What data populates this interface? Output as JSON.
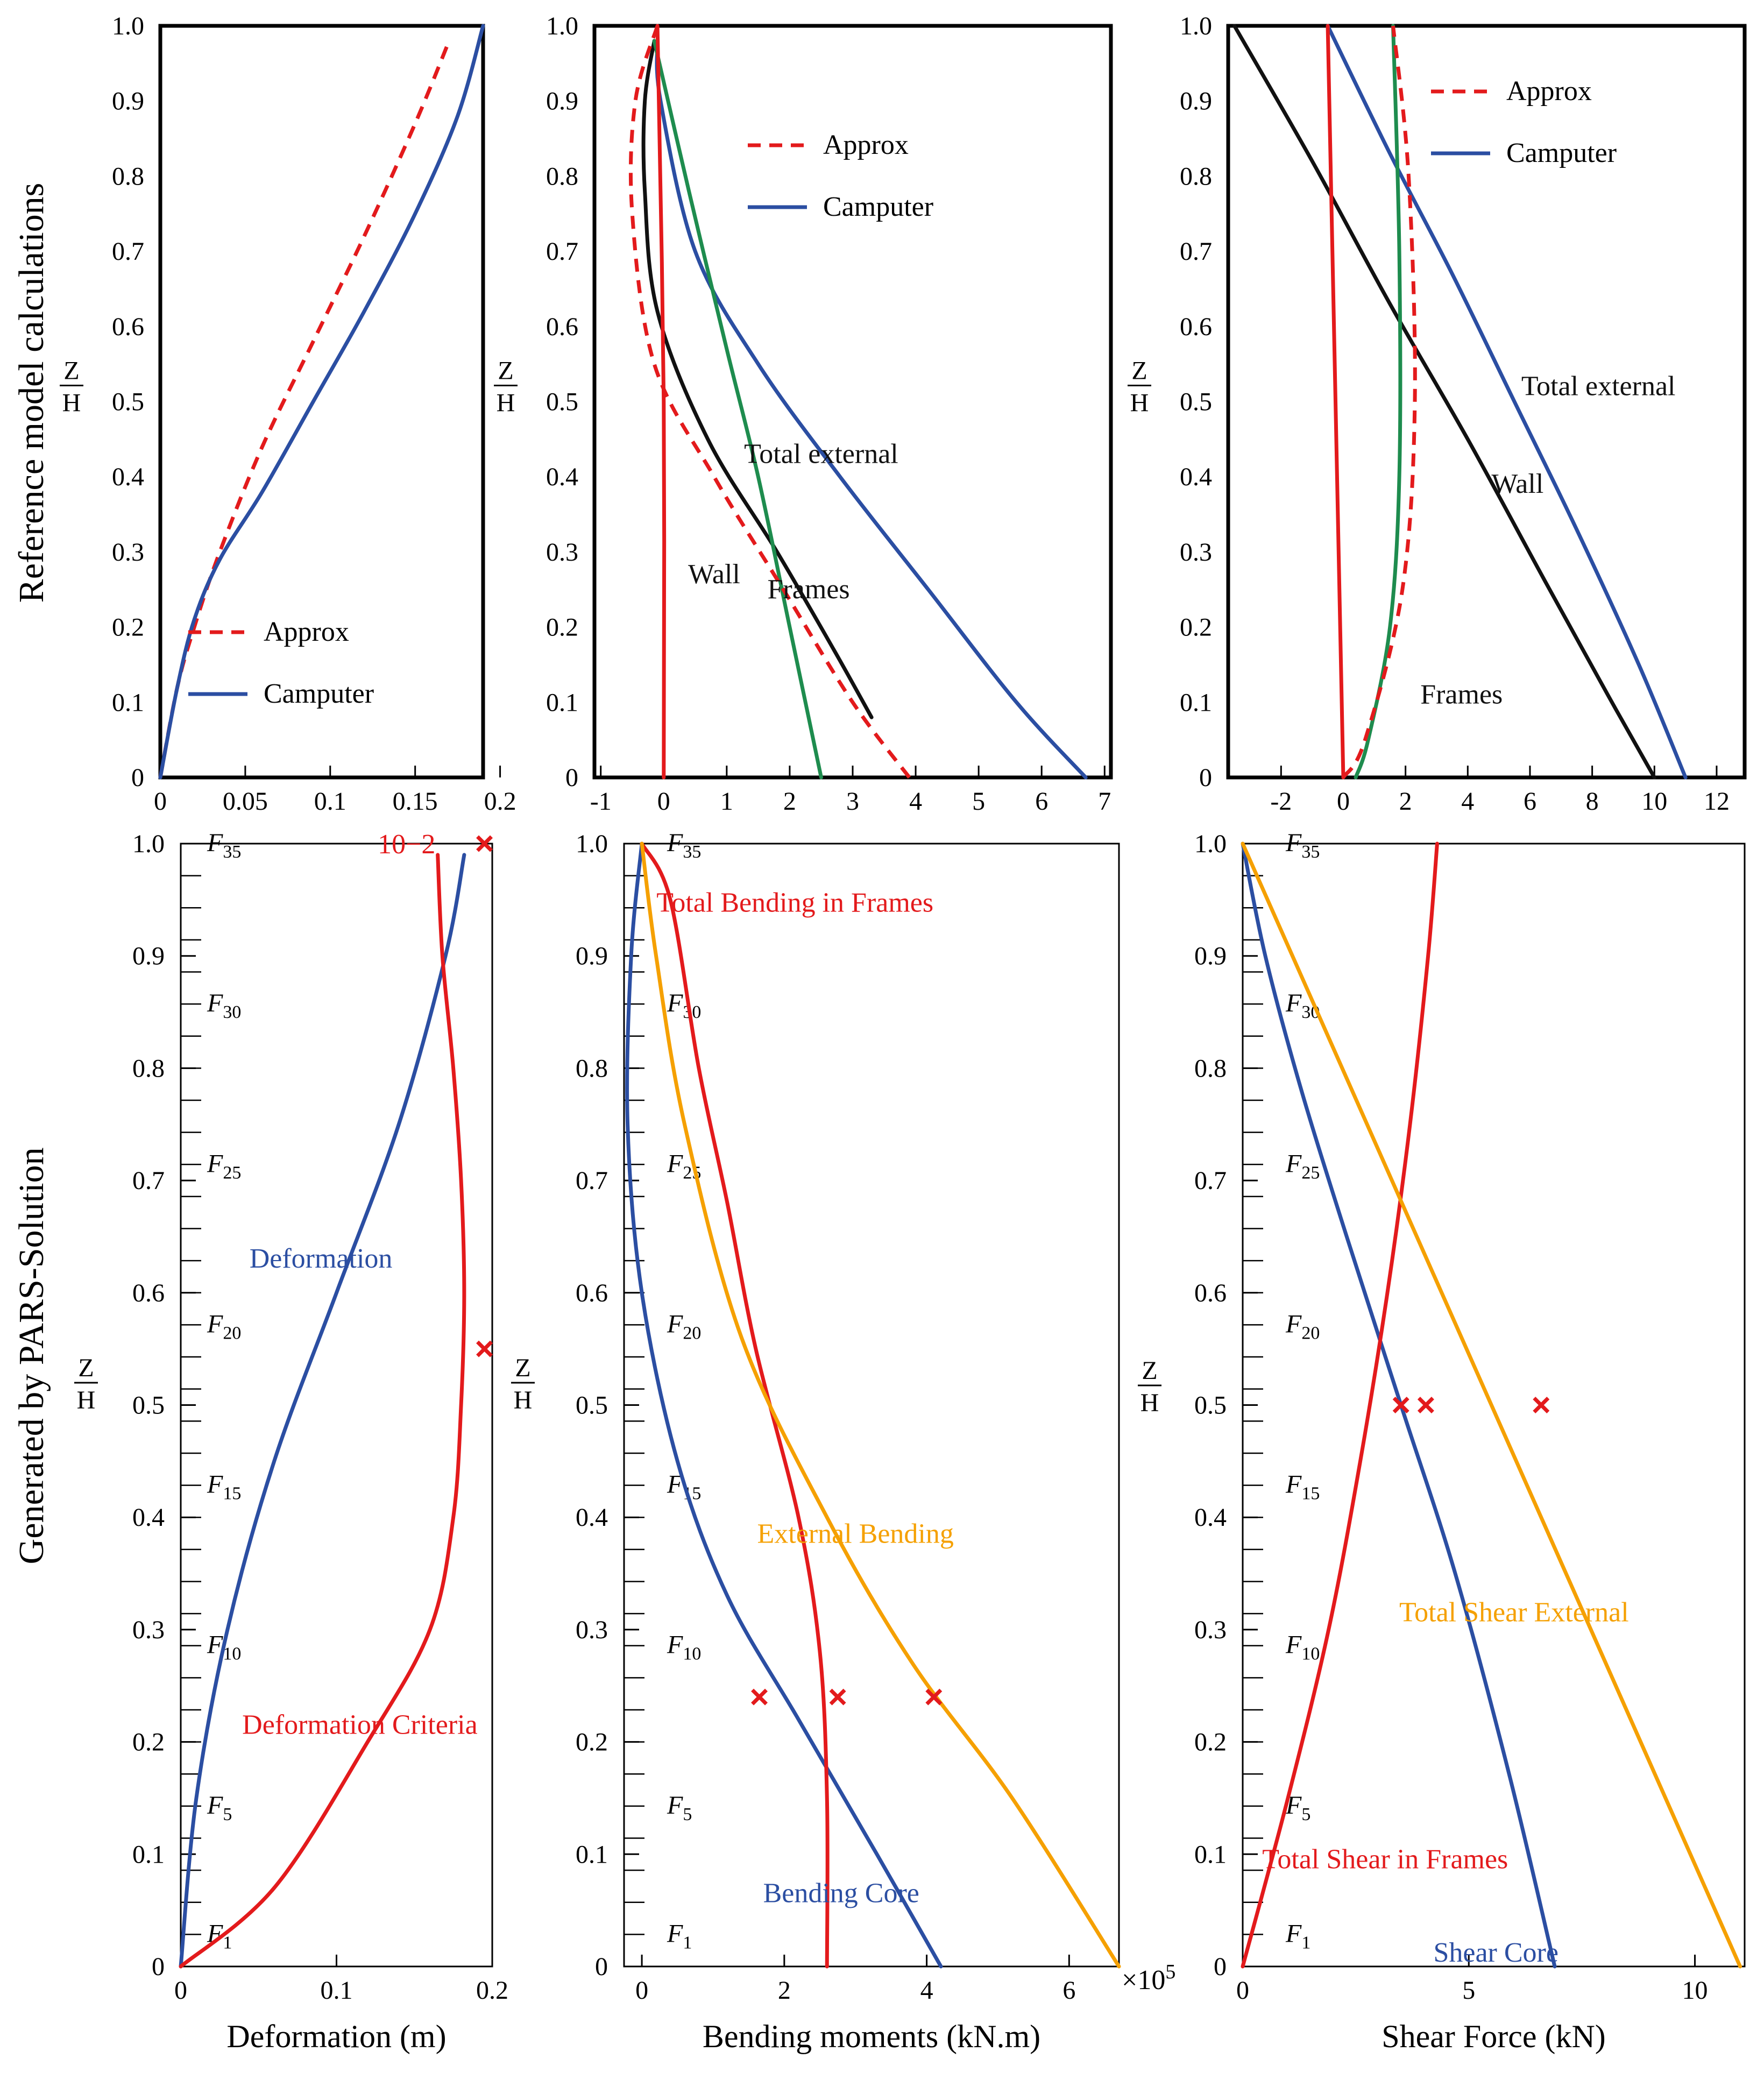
{
  "row_titles": {
    "top": "Reference model calculations",
    "bottom": "Generated by PARS-Solution"
  },
  "axis_fraction": {
    "numerator": "Z",
    "denominator": "H"
  },
  "colors": {
    "red": "#e31a1c",
    "blue": "#2b4ea2",
    "black": "#111111",
    "green": "#1e8c4e",
    "orange": "#f5a000"
  },
  "chart_data": [
    {
      "id": "ref-deformation",
      "type": "line",
      "xlim": [
        0,
        0.19
      ],
      "ylim": [
        0,
        1.0
      ],
      "xticks": [
        0,
        0.05,
        0.1,
        0.15,
        0.2
      ],
      "xtick_labels": [
        "0",
        "0.05",
        "0.1",
        "0.15",
        "0.2"
      ],
      "yticks": [
        0,
        0.1,
        0.2,
        0.3,
        0.4,
        0.5,
        0.6,
        0.7,
        0.8,
        0.9,
        1.0
      ],
      "ytick_labels": [
        "0",
        "0.1",
        "0.2",
        "0.3",
        "0.4",
        "0.5",
        "0.6",
        "0.7",
        "0.8",
        "0.9",
        "1.0"
      ],
      "ylabel": "Z/H",
      "xlabel": "",
      "legend": [
        {
          "label": "Approx",
          "style": "dashed",
          "color": "red"
        },
        {
          "label": "Camputer",
          "style": "solid",
          "color": "blue"
        }
      ],
      "series": [
        {
          "name": "Approx",
          "color": "red",
          "style": "dashed",
          "x": [
            0,
            0.01,
            0.02,
            0.035,
            0.06,
            0.09,
            0.12,
            0.15,
            0.17
          ],
          "y": [
            0,
            0.12,
            0.2,
            0.3,
            0.44,
            0.58,
            0.72,
            0.87,
            0.98
          ]
        },
        {
          "name": "Camputer",
          "color": "blue",
          "style": "solid",
          "x": [
            0,
            0.01,
            0.02,
            0.035,
            0.06,
            0.09,
            0.12,
            0.15,
            0.175,
            0.19
          ],
          "y": [
            0,
            0.12,
            0.21,
            0.29,
            0.38,
            0.5,
            0.62,
            0.75,
            0.88,
            1.0
          ]
        }
      ],
      "annotations": []
    },
    {
      "id": "ref-bending",
      "type": "line",
      "xlim": [
        -1.1,
        7.1
      ],
      "ylim": [
        0,
        1.0
      ],
      "xticks": [
        -1,
        0,
        1,
        2,
        3,
        4,
        5,
        6,
        7
      ],
      "xtick_labels": [
        "-1",
        "0",
        "1",
        "2",
        "3",
        "4",
        "5",
        "6",
        "7"
      ],
      "yticks": [
        0,
        0.1,
        0.2,
        0.3,
        0.4,
        0.5,
        0.6,
        0.7,
        0.8,
        0.9,
        1.0
      ],
      "ytick_labels": [
        "0",
        "0.1",
        "0.2",
        "0.3",
        "0.4",
        "0.5",
        "0.6",
        "0.7",
        "0.8",
        "0.9",
        "1.0"
      ],
      "ylabel": "Z/H",
      "xlabel": "",
      "legend": [
        {
          "label": "Approx",
          "style": "dashed",
          "color": "red"
        },
        {
          "label": "Camputer",
          "style": "solid",
          "color": "blue"
        }
      ],
      "series": [
        {
          "name": "Total external",
          "color": "blue",
          "style": "solid",
          "x": [
            -0.1,
            -0.05,
            0.5,
            1.5,
            2.8,
            4.2,
            5.6,
            6.7
          ],
          "y": [
            0.98,
            0.9,
            0.7,
            0.55,
            0.4,
            0.25,
            0.1,
            0.0
          ]
        },
        {
          "name": "Wall",
          "color": "black",
          "style": "solid",
          "x": [
            -0.15,
            -0.3,
            -0.3,
            -0.1,
            0.7,
            1.8,
            2.7,
            3.3
          ],
          "y": [
            0.98,
            0.9,
            0.78,
            0.62,
            0.45,
            0.3,
            0.17,
            0.08
          ]
        },
        {
          "name": "Frames",
          "color": "green",
          "style": "solid",
          "x": [
            -0.15,
            0.4,
            1.0,
            1.5,
            2.0,
            2.5
          ],
          "y": [
            0.98,
            0.78,
            0.57,
            0.4,
            0.2,
            0.0
          ]
        },
        {
          "name": "Approx Wall",
          "color": "red",
          "style": "dashed",
          "x": [
            -0.1,
            -0.45,
            -0.5,
            -0.15,
            0.8,
            1.9,
            3.0,
            3.9
          ],
          "y": [
            1.0,
            0.9,
            0.75,
            0.55,
            0.4,
            0.25,
            0.1,
            0.0
          ]
        },
        {
          "name": "Approx Frames",
          "color": "red",
          "style": "solid",
          "x": [
            -0.1,
            0.0,
            0.0
          ],
          "y": [
            1.0,
            0.5,
            0.0
          ]
        }
      ],
      "annotations": [
        {
          "text": "Total external",
          "x": 2.5,
          "y": 0.43,
          "color": "black"
        },
        {
          "text": "Wall",
          "x": 0.8,
          "y": 0.27,
          "color": "black"
        },
        {
          "text": "Frames",
          "x": 2.3,
          "y": 0.25,
          "color": "black"
        }
      ]
    },
    {
      "id": "ref-shear",
      "type": "line",
      "xlim": [
        -3.7,
        12.9
      ],
      "ylim": [
        0,
        1.0
      ],
      "xticks": [
        -2,
        0,
        2,
        4,
        6,
        8,
        10,
        12
      ],
      "xtick_labels": [
        "-2",
        "0",
        "2",
        "4",
        "6",
        "8",
        "10",
        "12"
      ],
      "yticks": [
        0,
        0.1,
        0.2,
        0.3,
        0.4,
        0.5,
        0.6,
        0.7,
        0.8,
        0.9,
        1.0
      ],
      "ytick_labels": [
        "0",
        "0.1",
        "0.2",
        "0.3",
        "0.4",
        "0.5",
        "0.6",
        "0.7",
        "0.8",
        "0.9",
        "1.0"
      ],
      "ylabel": "Z/H",
      "xlabel": "",
      "legend": [
        {
          "label": "Approx",
          "style": "dashed",
          "color": "red"
        },
        {
          "label": "Camputer",
          "style": "solid",
          "color": "blue"
        }
      ],
      "series": [
        {
          "name": "Total external",
          "color": "blue",
          "style": "solid",
          "x": [
            -0.5,
            1.5,
            3.5,
            5.5,
            7.5,
            9.5,
            11.0
          ],
          "y": [
            1.0,
            0.83,
            0.67,
            0.5,
            0.33,
            0.15,
            0.0
          ]
        },
        {
          "name": "Wall",
          "color": "black",
          "style": "solid",
          "x": [
            -3.5,
            -1.0,
            1.5,
            4.0,
            6.5,
            8.5,
            10.0
          ],
          "y": [
            1.0,
            0.82,
            0.63,
            0.45,
            0.26,
            0.11,
            0.0
          ]
        },
        {
          "name": "Frames",
          "color": "green",
          "style": "solid",
          "x": [
            0.4,
            0.8,
            1.5,
            1.8,
            1.8,
            1.6
          ],
          "y": [
            0.0,
            0.05,
            0.2,
            0.4,
            0.7,
            1.0
          ]
        },
        {
          "name": "Approx Frames",
          "color": "red",
          "style": "dashed",
          "x": [
            0.0,
            0.7,
            1.9,
            2.3,
            2.1,
            1.6
          ],
          "y": [
            0.0,
            0.05,
            0.25,
            0.5,
            0.8,
            1.0
          ]
        },
        {
          "name": "Approx Wall",
          "color": "red",
          "style": "solid",
          "x": [
            -0.5,
            0.0
          ],
          "y": [
            1.0,
            0.0
          ]
        }
      ],
      "annotations": [
        {
          "text": "Total external",
          "x": 8.2,
          "y": 0.52,
          "color": "black"
        },
        {
          "text": "Wall",
          "x": 5.6,
          "y": 0.39,
          "color": "black"
        },
        {
          "text": "Frames",
          "x": 3.8,
          "y": 0.11,
          "color": "black"
        }
      ]
    },
    {
      "id": "pars-deformation",
      "type": "line",
      "xlim": [
        0,
        0.2
      ],
      "ylim": [
        0,
        1.0
      ],
      "xticks": [
        0,
        0.1,
        0.2
      ],
      "xtick_labels": [
        "0",
        "0.1",
        "0.2"
      ],
      "yticks": [
        0,
        0.1,
        0.2,
        0.3,
        0.4,
        0.5,
        0.6,
        0.7,
        0.8,
        0.9,
        1.0
      ],
      "ytick_labels": [
        "0",
        "0.1",
        "0.2",
        "0.3",
        "0.4",
        "0.5",
        "0.6",
        "0.7",
        "0.8",
        "0.9",
        "1.0"
      ],
      "ylabel": "Z/H",
      "xlabel": "Deformation (m)",
      "right_label": "Z/H",
      "scale_note": "10−2",
      "floors": [
        "F35",
        "F30",
        "F25",
        "F20",
        "F15",
        "F10",
        "F5",
        "F1"
      ],
      "series": [
        {
          "name": "Deformation",
          "color": "blue",
          "style": "solid",
          "x": [
            0,
            0.01,
            0.03,
            0.06,
            0.1,
            0.14,
            0.17,
            0.182
          ],
          "y": [
            0,
            0.15,
            0.3,
            0.45,
            0.6,
            0.75,
            0.9,
            0.99
          ]
        },
        {
          "name": "Deformation Criteria",
          "color": "red",
          "style": "solid",
          "x": [
            0,
            0.06,
            0.12,
            0.16,
            0.175,
            0.18,
            0.182,
            0.18,
            0.175,
            0.168,
            0.165
          ],
          "y": [
            0,
            0.07,
            0.2,
            0.3,
            0.4,
            0.5,
            0.6,
            0.7,
            0.8,
            0.9,
            0.99
          ]
        }
      ],
      "markers": [
        {
          "x": 0.195,
          "y": 1.0
        },
        {
          "x": 0.195,
          "y": 0.55
        }
      ],
      "annotations": [
        {
          "text": "Deformation",
          "x": 0.09,
          "y": 0.63,
          "color": "blue"
        },
        {
          "text": "Deformation Criteria",
          "x": 0.115,
          "y": 0.215,
          "color": "red"
        }
      ]
    },
    {
      "id": "pars-bending",
      "type": "line",
      "xlim": [
        -0.25,
        6.7
      ],
      "ylim": [
        0,
        1.0
      ],
      "xticks": [
        0,
        2,
        4,
        6
      ],
      "xtick_labels": [
        "0",
        "2",
        "4",
        "6"
      ],
      "yticks": [
        0,
        0.1,
        0.2,
        0.3,
        0.4,
        0.5,
        0.6,
        0.7,
        0.8,
        0.9,
        1.0
      ],
      "ytick_labels": [
        "0",
        "0.1",
        "0.2",
        "0.3",
        "0.4",
        "0.5",
        "0.6",
        "0.7",
        "0.8",
        "0.9",
        "1.0"
      ],
      "ylabel": "",
      "xlabel": "Bending moments (kN.m)",
      "scale_note": "×10",
      "scale_exp": "5",
      "floors": [
        "F35",
        "F30",
        "F25",
        "F20",
        "F15",
        "F10",
        "F5",
        "F1"
      ],
      "series": [
        {
          "name": "Bending Core",
          "color": "blue",
          "style": "solid",
          "x": [
            0.0,
            -0.15,
            -0.2,
            0.0,
            0.5,
            1.2,
            2.2,
            3.3,
            4.2
          ],
          "y": [
            1.0,
            0.9,
            0.75,
            0.6,
            0.45,
            0.33,
            0.22,
            0.1,
            0.0
          ]
        },
        {
          "name": "Total Bending in Frames",
          "color": "red",
          "style": "solid",
          "x": [
            0.0,
            0.4,
            0.8,
            1.2,
            1.6,
            2.2,
            2.5,
            2.6,
            2.6
          ],
          "y": [
            1.0,
            0.95,
            0.8,
            0.68,
            0.55,
            0.4,
            0.28,
            0.15,
            0.0
          ]
        },
        {
          "name": "External Bending",
          "color": "orange",
          "style": "solid",
          "x": [
            0.0,
            0.2,
            0.6,
            1.4,
            2.6,
            3.8,
            5.2,
            6.7
          ],
          "y": [
            1.0,
            0.9,
            0.75,
            0.56,
            0.4,
            0.27,
            0.15,
            0.0
          ]
        }
      ],
      "markers": [
        {
          "x": 1.65,
          "y": 0.24
        },
        {
          "x": 2.75,
          "y": 0.24
        },
        {
          "x": 4.1,
          "y": 0.24
        }
      ],
      "annotations": [
        {
          "text": "Total Bending in Frames",
          "x": 2.15,
          "y": 0.947,
          "color": "red"
        },
        {
          "text": "External Bending",
          "x": 3.0,
          "y": 0.385,
          "color": "orange"
        },
        {
          "text": "Bending Core",
          "x": 2.8,
          "y": 0.065,
          "color": "blue"
        }
      ]
    },
    {
      "id": "pars-shear",
      "type": "line",
      "xlim": [
        0,
        11.1
      ],
      "ylim": [
        0,
        1.0
      ],
      "xticks": [
        0,
        5,
        10
      ],
      "xtick_labels": [
        "0",
        "5",
        "10"
      ],
      "yticks": [
        0,
        0.1,
        0.2,
        0.3,
        0.4,
        0.5,
        0.6,
        0.7,
        0.8,
        0.9,
        1.0
      ],
      "ytick_labels": [
        "0",
        "0.1",
        "0.2",
        "0.3",
        "0.4",
        "0.5",
        "0.6",
        "0.7",
        "0.8",
        "0.9",
        "1.0"
      ],
      "ylabel": "Z/H",
      "xlabel": "Shear Force (kN)",
      "floors": [
        "F35",
        "F30",
        "F25",
        "F20",
        "F15",
        "F10",
        "F5",
        "F1"
      ],
      "series": [
        {
          "name": "Shear Core",
          "color": "blue",
          "style": "solid",
          "x": [
            0.0,
            0.5,
            1.3,
            2.3,
            3.5,
            4.7,
            5.9,
            6.9
          ],
          "y": [
            1.0,
            0.9,
            0.78,
            0.65,
            0.5,
            0.35,
            0.17,
            0.0
          ]
        },
        {
          "name": "Total Shear in Frames",
          "color": "red",
          "style": "solid",
          "x": [
            0.0,
            1.0,
            1.9,
            2.6,
            3.2,
            3.7,
            4.1,
            4.3
          ],
          "y": [
            0.0,
            0.15,
            0.3,
            0.45,
            0.6,
            0.75,
            0.9,
            1.0
          ]
        },
        {
          "name": "Total Shear External",
          "color": "orange",
          "style": "solid",
          "x": [
            0.0,
            11.0
          ],
          "y": [
            1.0,
            0.0
          ]
        }
      ],
      "markers": [
        {
          "x": 3.5,
          "y": 0.5
        },
        {
          "x": 4.05,
          "y": 0.5
        },
        {
          "x": 6.6,
          "y": 0.5
        }
      ],
      "annotations": [
        {
          "text": "Total Shear External",
          "x": 6.0,
          "y": 0.315,
          "color": "orange"
        },
        {
          "text": "Total Shear in Frames",
          "x": 3.15,
          "y": 0.095,
          "color": "red"
        },
        {
          "text": "Shear Core",
          "x": 5.6,
          "y": 0.012,
          "color": "blue"
        }
      ]
    }
  ]
}
